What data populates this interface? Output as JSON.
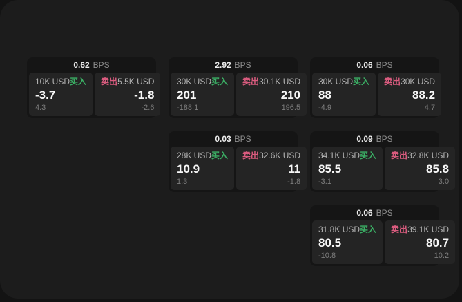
{
  "labels": {
    "bps": "BPS",
    "buy": "买入",
    "sell": "卖出"
  },
  "colors": {
    "buy": "#3bb065",
    "sell": "#d95b7e",
    "panel_background": "#1c1c1c",
    "outer_background": "#131313",
    "card_background": "#151515",
    "cell_background": "#242424"
  },
  "cards": [
    {
      "col": 1,
      "row": 1,
      "bps": "0.62",
      "buy": {
        "amount": "10K USD",
        "value": "-3.7",
        "sub": "4.3"
      },
      "sell": {
        "amount": "5.5K USD",
        "value": "-1.8",
        "sub": "-2.6"
      }
    },
    {
      "col": 2,
      "row": 1,
      "bps": "2.92",
      "buy": {
        "amount": "30K USD",
        "value": "201",
        "sub": "-188.1"
      },
      "sell": {
        "amount": "30.1K USD",
        "value": "210",
        "sub": "196.5"
      }
    },
    {
      "col": 3,
      "row": 1,
      "bps": "0.06",
      "buy": {
        "amount": "30K USD",
        "value": "88",
        "sub": "-4.9"
      },
      "sell": {
        "amount": "30K USD",
        "value": "88.2",
        "sub": "4.7"
      }
    },
    {
      "col": 2,
      "row": 2,
      "bps": "0.03",
      "buy": {
        "amount": "28K USD",
        "value": "10.9",
        "sub": "1.3"
      },
      "sell": {
        "amount": "32.6K USD",
        "value": "11",
        "sub": "-1.8"
      }
    },
    {
      "col": 3,
      "row": 2,
      "bps": "0.09",
      "buy": {
        "amount": "34.1K USD",
        "value": "85.5",
        "sub": "-3.1"
      },
      "sell": {
        "amount": "32.8K USD",
        "value": "85.8",
        "sub": "3.0"
      }
    },
    {
      "col": 3,
      "row": 3,
      "bps": "0.06",
      "buy": {
        "amount": "31.8K USD",
        "value": "80.5",
        "sub": "-10.8"
      },
      "sell": {
        "amount": "39.1K USD",
        "value": "80.7",
        "sub": "10.2"
      }
    }
  ]
}
